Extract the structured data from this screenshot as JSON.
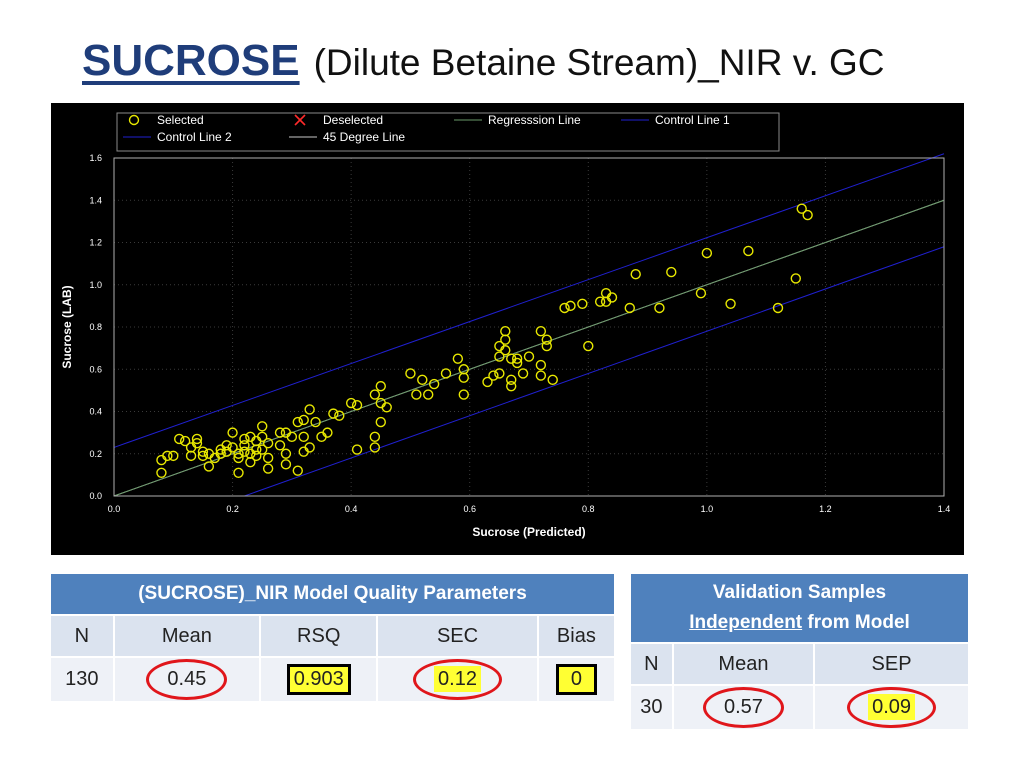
{
  "title": {
    "main": "SUCROSE",
    "sub": "(Dilute Betaine Stream)_NIR v. GC"
  },
  "chart_data": {
    "type": "scatter",
    "xlabel": "Sucrose (Predicted)",
    "ylabel": "Sucrose (LAB)",
    "xlim": [
      0.0,
      1.4
    ],
    "ylim": [
      0.0,
      1.6
    ],
    "xticks": [
      "0.0",
      "0.2",
      "0.4",
      "0.6",
      "0.8",
      "1.0",
      "1.2",
      "1.4"
    ],
    "yticks": [
      "0.0",
      "0.2",
      "0.4",
      "0.6",
      "0.8",
      "1.0",
      "1.2",
      "1.4",
      "1.6"
    ],
    "grid": true,
    "background": "#000000",
    "legend": {
      "position": "top",
      "items": [
        {
          "label": "Selected",
          "marker": "circle",
          "color": "#e8e800"
        },
        {
          "label": "Deselected",
          "marker": "x",
          "color": "#ff2a2a"
        },
        {
          "label": "Regresssion Line",
          "marker": "line",
          "color": "#6a9a6a"
        },
        {
          "label": "Control Line 1",
          "marker": "line",
          "color": "#2020d0"
        },
        {
          "label": "Control Line 2",
          "marker": "line",
          "color": "#2020d0"
        },
        {
          "label": "45 Degree Line",
          "marker": "line",
          "color": "#c8c8c8"
        }
      ]
    },
    "lines": [
      {
        "name": "Control Line 1",
        "color": "#2020d0",
        "x": [
          0.0,
          1.4
        ],
        "y": [
          0.23,
          1.62
        ]
      },
      {
        "name": "Control Line 2",
        "color": "#2020d0",
        "x": [
          0.22,
          1.4
        ],
        "y": [
          0.0,
          1.18
        ]
      },
      {
        "name": "45 Degree Line",
        "color": "#c8c8c8",
        "x": [
          0.0,
          1.4
        ],
        "y": [
          0.0,
          1.4
        ]
      },
      {
        "name": "Regresssion Line",
        "color": "#6a9a6a",
        "x": [
          0.0,
          1.4
        ],
        "y": [
          0.0,
          1.4
        ]
      }
    ],
    "series": [
      {
        "name": "Selected",
        "color": "#e8e800",
        "points": [
          [
            0.08,
            0.17
          ],
          [
            0.08,
            0.11
          ],
          [
            0.09,
            0.19
          ],
          [
            0.1,
            0.19
          ],
          [
            0.11,
            0.27
          ],
          [
            0.12,
            0.26
          ],
          [
            0.13,
            0.23
          ],
          [
            0.13,
            0.19
          ],
          [
            0.14,
            0.25
          ],
          [
            0.14,
            0.27
          ],
          [
            0.15,
            0.21
          ],
          [
            0.15,
            0.19
          ],
          [
            0.16,
            0.14
          ],
          [
            0.16,
            0.2
          ],
          [
            0.17,
            0.18
          ],
          [
            0.18,
            0.22
          ],
          [
            0.18,
            0.2
          ],
          [
            0.19,
            0.21
          ],
          [
            0.19,
            0.24
          ],
          [
            0.2,
            0.3
          ],
          [
            0.2,
            0.23
          ],
          [
            0.21,
            0.2
          ],
          [
            0.21,
            0.18
          ],
          [
            0.21,
            0.11
          ],
          [
            0.22,
            0.27
          ],
          [
            0.22,
            0.21
          ],
          [
            0.22,
            0.24
          ],
          [
            0.23,
            0.28
          ],
          [
            0.23,
            0.2
          ],
          [
            0.23,
            0.16
          ],
          [
            0.24,
            0.19
          ],
          [
            0.24,
            0.22
          ],
          [
            0.24,
            0.26
          ],
          [
            0.25,
            0.33
          ],
          [
            0.25,
            0.28
          ],
          [
            0.25,
            0.22
          ],
          [
            0.26,
            0.18
          ],
          [
            0.26,
            0.13
          ],
          [
            0.26,
            0.25
          ],
          [
            0.28,
            0.24
          ],
          [
            0.28,
            0.3
          ],
          [
            0.29,
            0.3
          ],
          [
            0.29,
            0.2
          ],
          [
            0.29,
            0.15
          ],
          [
            0.3,
            0.28
          ],
          [
            0.31,
            0.35
          ],
          [
            0.31,
            0.12
          ],
          [
            0.32,
            0.28
          ],
          [
            0.32,
            0.21
          ],
          [
            0.32,
            0.36
          ],
          [
            0.33,
            0.41
          ],
          [
            0.33,
            0.23
          ],
          [
            0.34,
            0.35
          ],
          [
            0.35,
            0.28
          ],
          [
            0.36,
            0.3
          ],
          [
            0.37,
            0.39
          ],
          [
            0.38,
            0.38
          ],
          [
            0.4,
            0.44
          ],
          [
            0.41,
            0.43
          ],
          [
            0.41,
            0.22
          ],
          [
            0.44,
            0.28
          ],
          [
            0.44,
            0.23
          ],
          [
            0.44,
            0.48
          ],
          [
            0.45,
            0.52
          ],
          [
            0.45,
            0.44
          ],
          [
            0.45,
            0.35
          ],
          [
            0.46,
            0.42
          ],
          [
            0.5,
            0.58
          ],
          [
            0.51,
            0.48
          ],
          [
            0.52,
            0.55
          ],
          [
            0.53,
            0.48
          ],
          [
            0.54,
            0.53
          ],
          [
            0.56,
            0.58
          ],
          [
            0.58,
            0.65
          ],
          [
            0.59,
            0.6
          ],
          [
            0.59,
            0.56
          ],
          [
            0.59,
            0.48
          ],
          [
            0.63,
            0.54
          ],
          [
            0.64,
            0.57
          ],
          [
            0.65,
            0.66
          ],
          [
            0.65,
            0.71
          ],
          [
            0.65,
            0.58
          ],
          [
            0.66,
            0.69
          ],
          [
            0.66,
            0.74
          ],
          [
            0.66,
            0.78
          ],
          [
            0.67,
            0.52
          ],
          [
            0.67,
            0.65
          ],
          [
            0.67,
            0.55
          ],
          [
            0.68,
            0.65
          ],
          [
            0.68,
            0.63
          ],
          [
            0.69,
            0.58
          ],
          [
            0.7,
            0.66
          ],
          [
            0.72,
            0.78
          ],
          [
            0.72,
            0.62
          ],
          [
            0.72,
            0.57
          ],
          [
            0.73,
            0.71
          ],
          [
            0.73,
            0.74
          ],
          [
            0.74,
            0.55
          ],
          [
            0.76,
            0.89
          ],
          [
            0.77,
            0.9
          ],
          [
            0.79,
            0.91
          ],
          [
            0.8,
            0.71
          ],
          [
            0.82,
            0.92
          ],
          [
            0.83,
            0.96
          ],
          [
            0.83,
            0.92
          ],
          [
            0.84,
            0.94
          ],
          [
            0.87,
            0.89
          ],
          [
            0.88,
            1.05
          ],
          [
            0.92,
            0.89
          ],
          [
            0.94,
            1.06
          ],
          [
            0.99,
            0.96
          ],
          [
            1.0,
            1.15
          ],
          [
            1.04,
            0.91
          ],
          [
            1.07,
            1.16
          ],
          [
            1.12,
            0.89
          ],
          [
            1.15,
            1.03
          ],
          [
            1.16,
            1.36
          ],
          [
            1.17,
            1.33
          ]
        ]
      }
    ]
  },
  "quality": {
    "header": "(SUCROSE)_NIR Model Quality Parameters",
    "columns": [
      "N",
      "Mean",
      "RSQ",
      "SEC",
      "Bias"
    ],
    "values": [
      "130",
      "0.45",
      "0.903",
      "0.12",
      "0"
    ]
  },
  "validation": {
    "header_line1": "Validation Samples",
    "header_underlined": "Independent",
    "header_rest": " from Model",
    "columns": [
      "N",
      "Mean",
      "SEP"
    ],
    "values": [
      "30",
      "0.57",
      "0.09"
    ]
  }
}
